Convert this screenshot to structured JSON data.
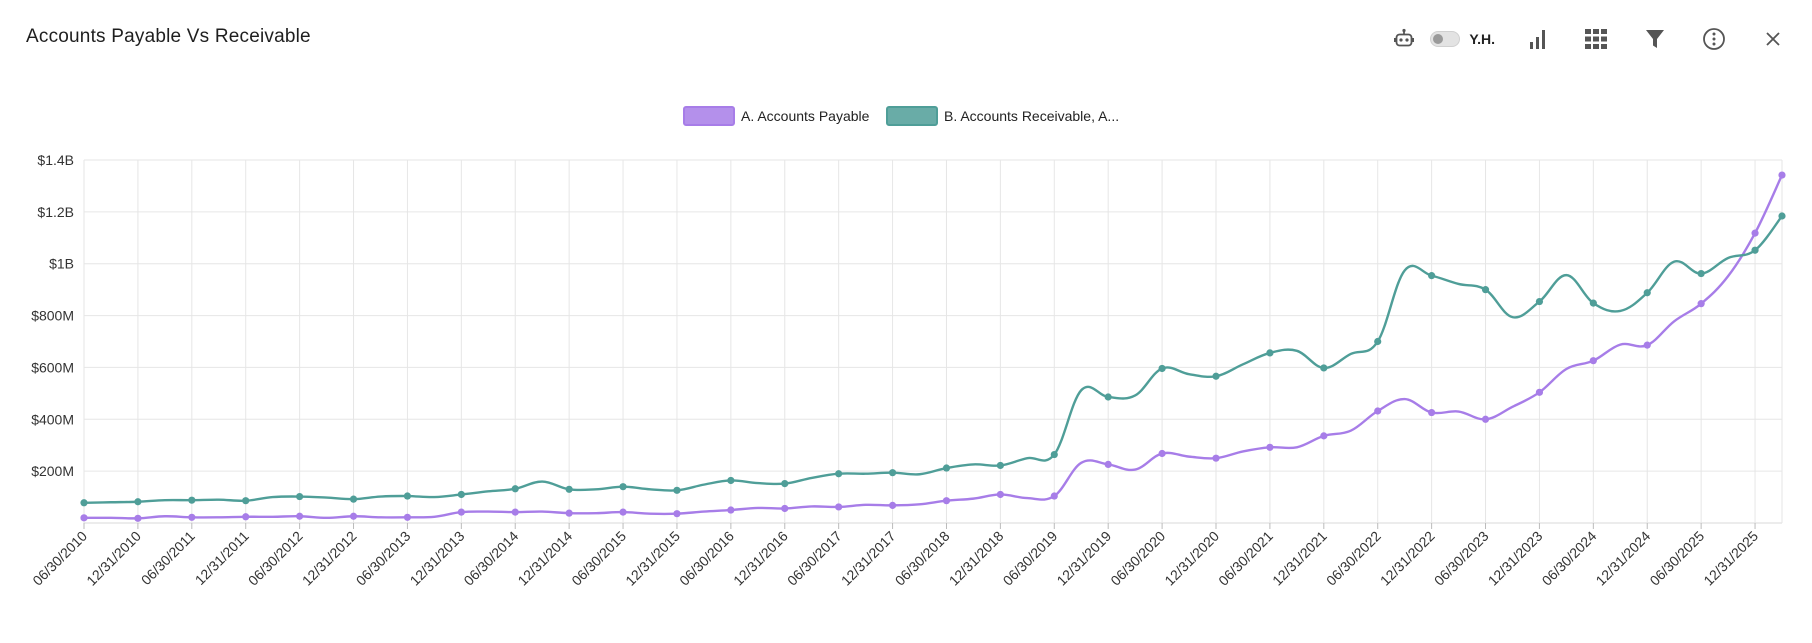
{
  "window": {
    "title": "Accounts Payable Vs Receivable",
    "toolbar": {
      "robot_icon": "robot-icon",
      "toggle_label": "Y.H.",
      "toggle_on": false,
      "chart_type_icon": "bar-chart-icon",
      "table_icon": "grid-table-icon",
      "filter_icon": "filter-icon",
      "more_icon": "more-info-icon",
      "close_icon": "close-icon"
    }
  },
  "colors": {
    "payable": "#a77de8",
    "receivable": "#4f9e98",
    "grid": "#e6e6e6"
  },
  "chart_data": {
    "type": "line",
    "title": "",
    "xlabel": "",
    "ylabel": "",
    "ylim": [
      0,
      1400000000
    ],
    "grid": true,
    "legend_position": "top-center",
    "y_ticks": [
      {
        "value": 200000000,
        "label": "$200M"
      },
      {
        "value": 400000000,
        "label": "$400M"
      },
      {
        "value": 600000000,
        "label": "$600M"
      },
      {
        "value": 800000000,
        "label": "$800M"
      },
      {
        "value": 1000000000,
        "label": "$1B"
      },
      {
        "value": 1200000000,
        "label": "$1.2B"
      },
      {
        "value": 1400000000,
        "label": "$1.4B"
      }
    ],
    "x_tick_labels": [
      "06/30/2010",
      "12/31/2010",
      "06/30/2011",
      "12/31/2011",
      "06/30/2012",
      "12/31/2012",
      "06/30/2013",
      "12/31/2013",
      "06/30/2014",
      "12/31/2014",
      "06/30/2015",
      "12/31/2015",
      "06/30/2016",
      "12/31/2016",
      "06/30/2017",
      "12/31/2017",
      "06/30/2018",
      "12/31/2018",
      "06/30/2019",
      "12/31/2019",
      "06/30/2020",
      "12/31/2020",
      "06/30/2021",
      "12/31/2021",
      "06/30/2022",
      "12/31/2022",
      "06/30/2023",
      "12/31/2023",
      "06/30/2024",
      "12/31/2024",
      "06/30/2025",
      "12/31/2025"
    ],
    "x_start": "06/30/2010",
    "x_interval": "quarterly",
    "series": [
      {
        "name": "A. Accounts Payable",
        "values": [
          20,
          20,
          18,
          26,
          22,
          22,
          24,
          24,
          26,
          20,
          26,
          22,
          22,
          24,
          42,
          44,
          42,
          44,
          38,
          38,
          42,
          36,
          36,
          44,
          50,
          58,
          56,
          64,
          62,
          70,
          68,
          72,
          86,
          94,
          110,
          96,
          104,
          232,
          226,
          206,
          268,
          256,
          250,
          276,
          292,
          292,
          336,
          356,
          432,
          478,
          426,
          430,
          400,
          448,
          504,
          594,
          626,
          688,
          686,
          778,
          846,
          952,
          1118,
          1342
        ]
      },
      {
        "name": "B. Accounts Receivable, A...",
        "values": [
          78,
          80,
          82,
          88,
          88,
          90,
          86,
          100,
          102,
          98,
          92,
          102,
          104,
          100,
          110,
          122,
          132,
          160,
          130,
          130,
          140,
          130,
          126,
          148,
          164,
          154,
          152,
          174,
          190,
          190,
          194,
          188,
          212,
          226,
          222,
          250,
          264,
          512,
          486,
          492,
          596,
          574,
          566,
          612,
          656,
          664,
          598,
          652,
          700,
          974,
          954,
          922,
          900,
          794,
          854,
          956,
          848,
          818,
          888,
          1008,
          962,
          1022,
          1052,
          1184
        ]
      }
    ],
    "value_units": "millions USD"
  }
}
